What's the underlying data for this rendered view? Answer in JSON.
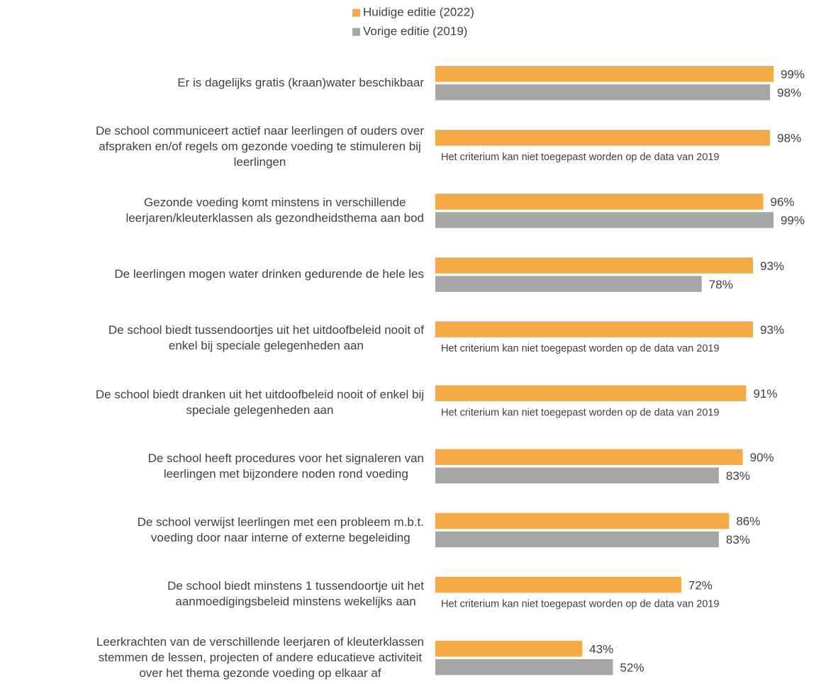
{
  "chart_data": {
    "type": "hbar",
    "categories": [
      "Er is dagelijks gratis (kraan)water beschikbaar",
      "De school communiceert actief naar leerlingen of ouders over\nafspraken en/of regels om gezonde voeding te stimuleren bij\nleerlingen",
      "Gezonde voeding komt minstens in verschillende\nleerjaren/kleuterklassen als gezondheidsthema aan bod",
      "De leerlingen mogen water drinken gedurende de hele les",
      "De school biedt tussendoortjes uit het uitdoofbeleid nooit of\nenkel bij speciale gelegenheden aan",
      "De school biedt dranken uit het uitdoofbeleid nooit of enkel bij\nspeciale gelegenheden aan",
      "De school heeft procedures voor het signaleren van\nleerlingen met bijzondere noden rond voeding",
      "De school verwijst leerlingen met een probleem m.b.t.\nvoeding door naar interne of externe begeleiding",
      "De school biedt minstens 1 tussendoortje uit het\naanmoedigingsbeleid minstens wekelijks aan",
      "Leerkrachten van de verschillende leerjaren of kleuterklassen\nstemmen de lessen, projecten of andere educatieve activiteit\nover het thema gezonde voeding op elkaar af"
    ],
    "series": [
      {
        "name": "Huidige editie (2022)",
        "color": "#f5a947",
        "values": [
          99,
          98,
          96,
          93,
          93,
          91,
          90,
          86,
          72,
          43
        ],
        "value_labels": [
          "99%",
          "98%",
          "96%",
          "93%",
          "93%",
          "91%",
          "90%",
          "86%",
          "72%",
          "43%"
        ]
      },
      {
        "name": "Vorige editie (2019)",
        "color": "#a6a6a6",
        "values": [
          98,
          null,
          99,
          78,
          null,
          null,
          83,
          83,
          null,
          52
        ],
        "value_labels": [
          "98%",
          null,
          "99%",
          "78%",
          null,
          null,
          "83%",
          "83%",
          null,
          "52%"
        ]
      }
    ],
    "missing_note": "Het criterium kan niet toegepast worden op de data van 2019",
    "xlim": [
      0,
      100
    ]
  }
}
